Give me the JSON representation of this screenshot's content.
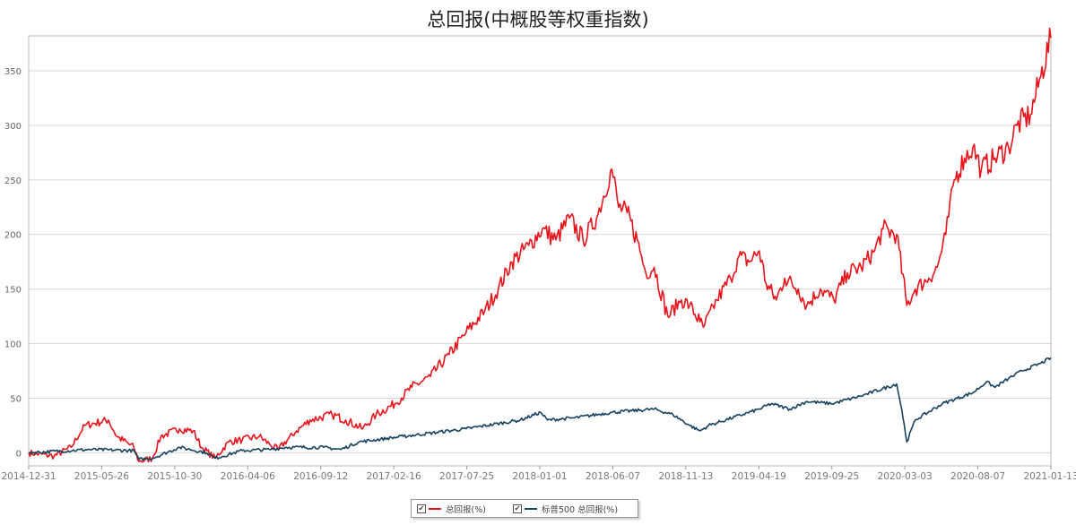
{
  "chart_data": {
    "type": "line",
    "title": "总回报(中概股等权重指数)",
    "xlabel": "",
    "ylabel": "",
    "x_unit": "decimal year",
    "xlim": [
      2015.0,
      2021.03
    ],
    "ylim": [
      -12,
      382
    ],
    "yticks": [
      0,
      50,
      100,
      150,
      200,
      250,
      300,
      350
    ],
    "xtick_labels": [
      "2014-12-31",
      "2015-05-26",
      "2015-10-30",
      "2016-04-06",
      "2016-09-12",
      "2017-02-16",
      "2017-07-25",
      "2018-01-01",
      "2018-06-07",
      "2018-11-13",
      "2019-04-19",
      "2019-09-25",
      "2020-03-03",
      "2020-08-07",
      "2021-01-13"
    ],
    "grid": "horizontal",
    "legend_position": "bottom-center",
    "series": [
      {
        "name": "总回报(%)",
        "color": "#e8141c",
        "x": [
          2015.0,
          2015.15,
          2015.25,
          2015.33,
          2015.47,
          2015.52,
          2015.62,
          2015.65,
          2015.73,
          2015.78,
          2015.89,
          2015.97,
          2016.02,
          2016.1,
          2016.18,
          2016.26,
          2016.36,
          2016.42,
          2016.47,
          2016.58,
          2016.66,
          2016.79,
          2016.87,
          2016.97,
          2017.05,
          2017.16,
          2017.26,
          2017.37,
          2017.48,
          2017.58,
          2017.69,
          2017.77,
          2017.85,
          2017.95,
          2018.03,
          2018.11,
          2018.19,
          2018.27,
          2018.35,
          2018.44,
          2018.48,
          2018.53,
          2018.59,
          2018.64,
          2018.69,
          2018.77,
          2018.85,
          2018.9,
          2018.96,
          2018.98,
          2019.06,
          2019.14,
          2019.19,
          2019.25,
          2019.31,
          2019.35,
          2019.41,
          2019.46,
          2019.54,
          2019.59,
          2019.67,
          2019.75,
          2019.83,
          2019.91,
          2019.99,
          2020.04,
          2020.12,
          2020.18,
          2020.23,
          2020.31,
          2020.36,
          2020.41,
          2020.46,
          2020.52,
          2020.57,
          2020.62,
          2020.7,
          2020.78,
          2020.83,
          2020.91,
          2020.97,
          2021.03
        ],
        "values": [
          0,
          -3,
          5,
          25,
          30,
          15,
          5,
          -8,
          -5,
          15,
          22,
          20,
          5,
          -5,
          10,
          12,
          15,
          8,
          3,
          20,
          30,
          35,
          30,
          22,
          35,
          45,
          60,
          70,
          90,
          110,
          130,
          150,
          175,
          190,
          205,
          195,
          215,
          195,
          215,
          260,
          225,
          220,
          195,
          165,
          170,
          125,
          140,
          135,
          120,
          115,
          140,
          160,
          180,
          175,
          185,
          155,
          140,
          160,
          150,
          135,
          150,
          140,
          165,
          170,
          185,
          205,
          200,
          135,
          150,
          160,
          170,
          200,
          250,
          270,
          280,
          260,
          270,
          280,
          300,
          310,
          345,
          380
        ]
      },
      {
        "name": "标普500 总回报(%)",
        "color": "#16425f",
        "x": [
          2015.0,
          2015.36,
          2015.62,
          2015.65,
          2015.73,
          2015.89,
          2016.05,
          2016.1,
          2016.26,
          2016.42,
          2016.52,
          2016.74,
          2016.84,
          2016.95,
          2017.21,
          2017.58,
          2017.9,
          2018.02,
          2018.06,
          2018.22,
          2018.44,
          2018.69,
          2018.8,
          2018.9,
          2018.96,
          2019.01,
          2019.31,
          2019.38,
          2019.49,
          2019.59,
          2019.74,
          2019.91,
          2020.12,
          2020.15,
          2020.18,
          2020.23,
          2020.39,
          2020.57,
          2020.65,
          2020.7,
          2020.78,
          2020.86,
          2020.97,
          2021.03
        ],
        "values": [
          0,
          3,
          2,
          -6,
          -5,
          5,
          0,
          -5,
          2,
          3,
          5,
          5,
          3,
          10,
          15,
          22,
          30,
          37,
          30,
          32,
          37,
          40,
          35,
          25,
          20,
          25,
          40,
          45,
          40,
          47,
          45,
          52,
          63,
          40,
          10,
          30,
          45,
          55,
          65,
          60,
          68,
          75,
          82,
          87
        ]
      }
    ]
  }
}
